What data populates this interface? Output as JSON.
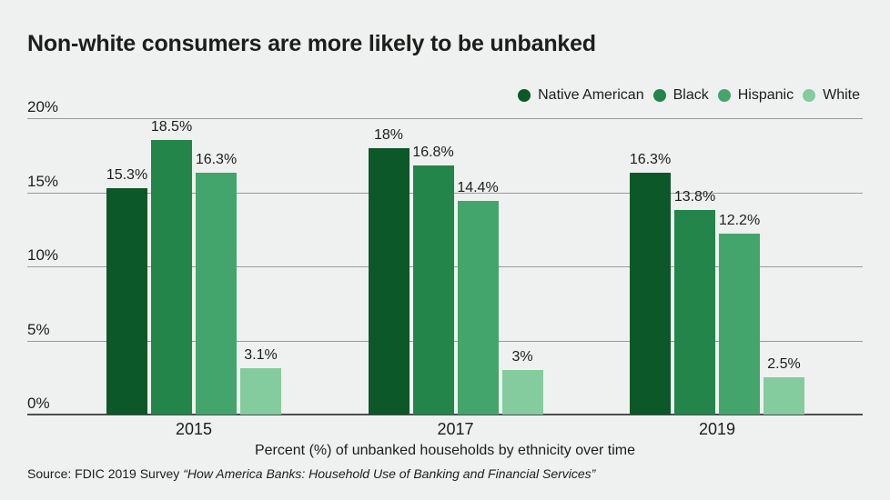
{
  "header": {
    "title": "Non-white consumers are more likely to be unbanked"
  },
  "chart_data": {
    "type": "bar",
    "title": "Non-white consumers are more likely to be unbanked",
    "categories": [
      "2015",
      "2017",
      "2019"
    ],
    "series": [
      {
        "name": "Native American",
        "color": "#0c5829",
        "values": [
          15.3,
          18,
          16.3
        ],
        "labels": [
          "15.3%",
          "18%",
          "16.3%"
        ]
      },
      {
        "name": "Black",
        "color": "#23854a",
        "values": [
          18.5,
          16.8,
          13.8
        ],
        "labels": [
          "18.5%",
          "16.8%",
          "13.8%"
        ]
      },
      {
        "name": "Hispanic",
        "color": "#44a56c",
        "values": [
          16.3,
          14.4,
          12.2
        ],
        "labels": [
          "16.3%",
          "14.4%",
          "12.2%"
        ]
      },
      {
        "name": "White",
        "color": "#84cc9e",
        "values": [
          3.1,
          3,
          2.5
        ],
        "labels": [
          "3.1%",
          "3%",
          "2.5%"
        ]
      }
    ],
    "xlabel": "Percent (%) of unbanked households by ethnicity over time",
    "ylabel": "",
    "ylim": [
      0,
      20
    ],
    "yticks": [
      0,
      5,
      10,
      15,
      20
    ],
    "ytick_labels": [
      "0%",
      "5%",
      "10%",
      "15%",
      "20%"
    ],
    "grid": true,
    "legend_position": "top-right"
  },
  "footer": {
    "source_prefix": "Source: FDIC 2019 Survey ",
    "source_citation": "“How America Banks: Household Use of Banking and Financial Services”"
  },
  "colors": {
    "background": "#eff1f0",
    "gridline": "#9a9a9a",
    "baseline": "#4d4d4d",
    "text": "#1d1d1b"
  }
}
